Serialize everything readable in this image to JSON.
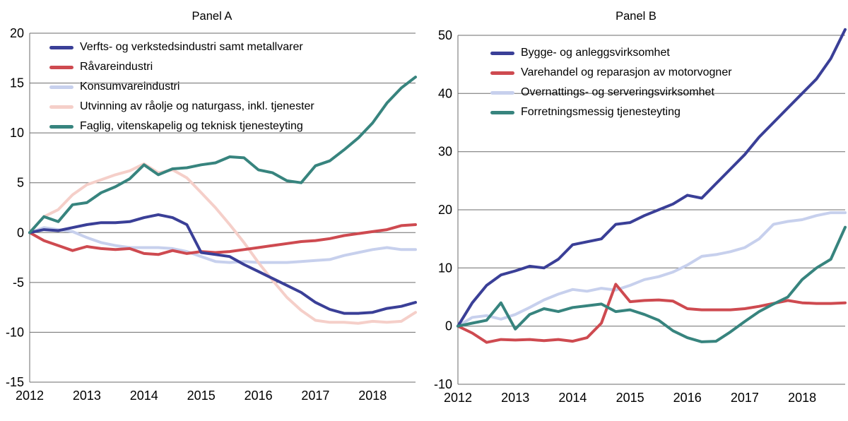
{
  "figure": {
    "background": "#ffffff",
    "grid_color": "#6b6b6b",
    "text_color": "#000000"
  },
  "chart_data": [
    {
      "type": "line",
      "title": "Panel A",
      "x_start": 2012,
      "x_step": 0.25,
      "xticks": [
        2012,
        2013,
        2014,
        2015,
        2016,
        2017,
        2018
      ],
      "ylim": [
        -15,
        20
      ],
      "yticks": [
        -15,
        -10,
        -5,
        0,
        5,
        10,
        15,
        20
      ],
      "grid": true,
      "legend_position": "top-left",
      "draw_order": [
        2,
        3,
        1,
        0,
        4
      ],
      "series": [
        {
          "name": "Verfts- og verkstedsindustri samt metallvarer",
          "color": "#3a3f97",
          "values": [
            0,
            0.3,
            0.2,
            0.5,
            0.8,
            1.0,
            1.0,
            1.1,
            1.5,
            1.8,
            1.5,
            0.8,
            -2.0,
            -2.2,
            -2.4,
            -3.2,
            -3.9,
            -4.6,
            -5.3,
            -6.0,
            -7.0,
            -7.7,
            -8.1,
            -8.1,
            -8.0,
            -7.6,
            -7.4,
            -7.0
          ]
        },
        {
          "name": "Råvareindustri",
          "color": "#ce4a50",
          "values": [
            0,
            -0.8,
            -1.3,
            -1.8,
            -1.4,
            -1.6,
            -1.7,
            -1.6,
            -2.1,
            -2.2,
            -1.8,
            -2.1,
            -1.9,
            -2.0,
            -1.9,
            -1.7,
            -1.5,
            -1.3,
            -1.1,
            -0.9,
            -0.8,
            -0.6,
            -0.3,
            -0.1,
            0.1,
            0.3,
            0.7,
            0.8
          ]
        },
        {
          "name": "Konsumvareindustri",
          "color": "#c7d0ed",
          "values": [
            0,
            0.5,
            0.3,
            0.1,
            -0.5,
            -1.0,
            -1.3,
            -1.5,
            -1.5,
            -1.5,
            -1.6,
            -1.9,
            -2.4,
            -2.9,
            -3.0,
            -2.9,
            -3.0,
            -3.0,
            -3.0,
            -2.9,
            -2.8,
            -2.7,
            -2.3,
            -2.0,
            -1.7,
            -1.5,
            -1.7,
            -1.7
          ]
        },
        {
          "name": "Utvinning av råolje og naturgass, inkl. tjenester",
          "color": "#f5cfc9",
          "values": [
            0,
            1.6,
            2.3,
            3.8,
            4.8,
            5.3,
            5.8,
            6.2,
            6.9,
            6.0,
            6.3,
            5.5,
            4.0,
            2.5,
            0.8,
            -1.0,
            -3.0,
            -4.8,
            -6.5,
            -7.8,
            -8.8,
            -9.0,
            -9.0,
            -9.1,
            -8.9,
            -9.0,
            -8.9,
            -8.0
          ]
        },
        {
          "name": "Faglig, vitenskapelig og teknisk tjenesteyting",
          "color": "#37847e",
          "values": [
            0,
            1.6,
            1.1,
            2.8,
            3.0,
            4.0,
            4.6,
            5.4,
            6.8,
            5.8,
            6.4,
            6.5,
            6.8,
            7.0,
            7.6,
            7.5,
            6.3,
            6.0,
            5.2,
            5.0,
            6.7,
            7.2,
            8.3,
            9.5,
            11.0,
            13.0,
            14.5,
            15.6
          ]
        }
      ]
    },
    {
      "type": "line",
      "title": "Panel B",
      "x_start": 2012,
      "x_step": 0.25,
      "xticks": [
        2012,
        2013,
        2014,
        2015,
        2016,
        2017,
        2018
      ],
      "ylim": [
        -10,
        50
      ],
      "yticks": [
        -10,
        0,
        10,
        20,
        30,
        40,
        50
      ],
      "grid": true,
      "legend_position": "top-left",
      "draw_order": [
        2,
        1,
        0,
        3
      ],
      "series": [
        {
          "name": "Bygge- og anleggsvirksomhet",
          "color": "#3a3f97",
          "values": [
            0,
            4.0,
            7.0,
            8.8,
            9.5,
            10.3,
            10.0,
            11.5,
            14.0,
            14.5,
            15.0,
            17.5,
            17.8,
            19.0,
            20.0,
            21.0,
            22.5,
            22.0,
            24.5,
            27.0,
            29.5,
            32.5,
            35.0,
            37.5,
            40.0,
            42.5,
            46.0,
            51.0
          ]
        },
        {
          "name": "Varehandel og reparasjon av motorvogner",
          "color": "#ce4a50",
          "values": [
            0,
            -1.2,
            -2.8,
            -2.3,
            -2.4,
            -2.3,
            -2.5,
            -2.3,
            -2.6,
            -2.0,
            0.5,
            7.2,
            4.2,
            4.4,
            4.5,
            4.3,
            3.0,
            2.8,
            2.8,
            2.8,
            3.0,
            3.4,
            3.9,
            4.4,
            4.0,
            3.9,
            3.9,
            4.0
          ]
        },
        {
          "name": "Overnattings- og serveringsvirksomhet",
          "color": "#c7d0ed",
          "values": [
            0,
            1.5,
            1.8,
            1.2,
            2.0,
            3.2,
            4.5,
            5.5,
            6.3,
            6.0,
            6.5,
            6.2,
            7.0,
            8.0,
            8.5,
            9.3,
            10.5,
            12.0,
            12.3,
            12.8,
            13.5,
            15.0,
            17.5,
            18.0,
            18.3,
            19.0,
            19.5,
            19.5
          ]
        },
        {
          "name": "Forretningsmessig tjenesteyting",
          "color": "#37847e",
          "values": [
            0,
            0.5,
            1.0,
            4.0,
            -0.5,
            2.0,
            3.0,
            2.5,
            3.2,
            3.5,
            3.8,
            2.5,
            2.8,
            2.0,
            1.0,
            -0.8,
            -2.0,
            -2.7,
            -2.6,
            -1.0,
            0.8,
            2.5,
            3.8,
            5.0,
            8.0,
            10.0,
            11.5,
            17.0
          ]
        }
      ]
    }
  ]
}
